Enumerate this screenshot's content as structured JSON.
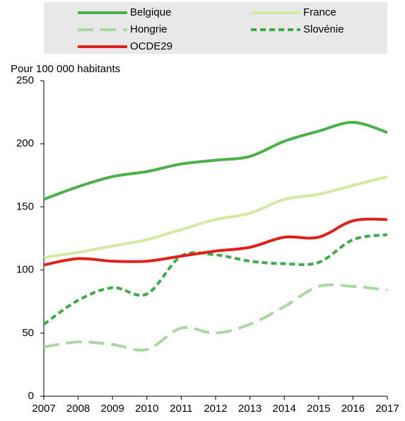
{
  "chart_data": {
    "type": "line",
    "y_label": "Pour 100 000 habitants",
    "x": [
      2007,
      2008,
      2009,
      2010,
      2011,
      2012,
      2013,
      2014,
      2015,
      2016,
      2017
    ],
    "series": [
      {
        "name": "Belgique",
        "color": "#4cb04a",
        "dash": "solid",
        "values": [
          156,
          166,
          174,
          178,
          184,
          187,
          190,
          202,
          210,
          217,
          209
        ]
      },
      {
        "name": "France",
        "color": "#d4e9a2",
        "dash": "solid",
        "values": [
          110,
          114,
          119,
          124,
          132,
          140,
          145,
          156,
          160,
          167,
          174
        ]
      },
      {
        "name": "Hongrie",
        "color": "#a9d8a0",
        "dash": "dashed",
        "values": [
          39,
          43,
          41,
          37,
          54,
          50,
          57,
          71,
          87,
          87,
          84
        ]
      },
      {
        "name": "Slovénie",
        "color": "#3faa48",
        "dash": "dotted",
        "values": [
          57,
          76,
          86,
          81,
          111,
          112,
          107,
          105,
          106,
          124,
          128
        ]
      },
      {
        "name": "OCDE29",
        "color": "#e0201b",
        "dash": "solid",
        "values": [
          104,
          109,
          107,
          107,
          111,
          115,
          118,
          126,
          126,
          139,
          140
        ]
      }
    ],
    "xlim": [
      2007,
      2017
    ],
    "xticks": [
      2007,
      2008,
      2009,
      2010,
      2011,
      2012,
      2013,
      2014,
      2015,
      2016,
      2017
    ],
    "ylim": [
      0,
      250
    ],
    "yticks": [
      0,
      50,
      100,
      150,
      200,
      250
    ],
    "grid": false
  }
}
